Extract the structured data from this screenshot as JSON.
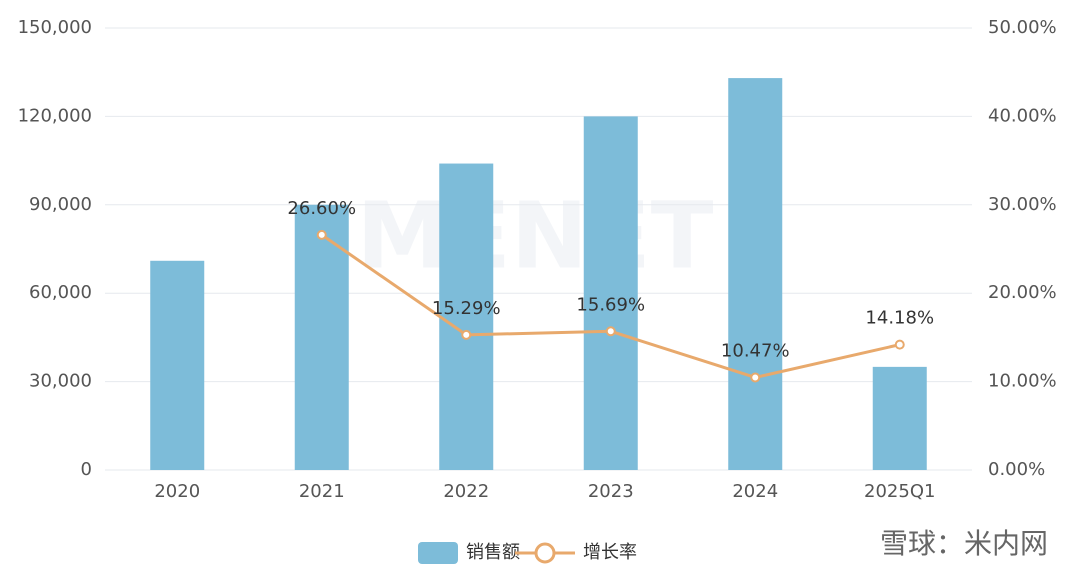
{
  "chart_data": {
    "type": "bar-line",
    "categories": [
      "2020",
      "2021",
      "2022",
      "2023",
      "2024",
      "2025Q1"
    ],
    "series": [
      {
        "name": "销售额",
        "type": "bar",
        "color": "#7dbcd9",
        "values": [
          71000,
          90000,
          104000,
          120000,
          133000,
          35000
        ]
      },
      {
        "name": "增长率",
        "type": "line",
        "axis": "y2",
        "color": "#e8a96c",
        "values": [
          null,
          26.6,
          15.29,
          15.69,
          10.47,
          14.18
        ],
        "value_labels": [
          null,
          "26.60%",
          "15.29%",
          "15.69%",
          "10.47%",
          "14.18%"
        ]
      }
    ],
    "ylim": [
      0,
      150000
    ],
    "yticks": [
      0,
      {
        "value": 30000,
        "label": "30,000"
      },
      {
        "value": 60000,
        "label": "60,000"
      },
      {
        "value": 90000,
        "label": "90,000"
      },
      {
        "value": 120000,
        "label": "120,000"
      },
      {
        "value": 150000,
        "label": "150,000"
      }
    ],
    "y2lim": [
      0,
      50
    ],
    "y2ticks": [
      {
        "value": 0,
        "label": "0.00%"
      },
      {
        "value": 10,
        "label": "10.00%"
      },
      {
        "value": 20,
        "label": "20.00%"
      },
      {
        "value": 30,
        "label": "30.00%"
      },
      {
        "value": 40,
        "label": "40.00%"
      },
      {
        "value": 50,
        "label": "50.00%"
      }
    ],
    "grid": true,
    "legend": "bottom",
    "watermarks": [
      "MENET",
      "雪球：米内网"
    ]
  }
}
